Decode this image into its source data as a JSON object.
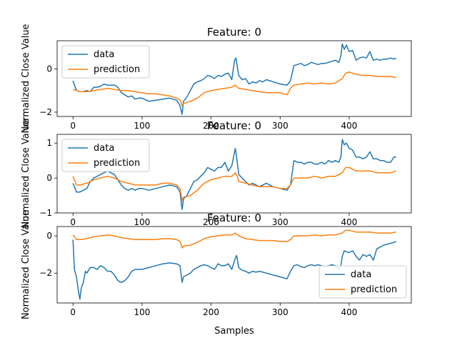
{
  "colors": {
    "data": "#1f77b4",
    "prediction": "#ff7f0e",
    "axis": "#000000"
  },
  "xlabel": "Samples",
  "chart_data": [
    {
      "type": "line",
      "title": "Feature: 0",
      "ylabel": "Normalized Close Value",
      "xlim": [
        -23,
        490
      ],
      "ylim": [
        -2.2,
        1.3
      ],
      "xticks": [
        0,
        100,
        200,
        300,
        400
      ],
      "yticks": [
        -2,
        0
      ],
      "legend": "upper-left",
      "series": [
        {
          "name": "data",
          "x": [
            0,
            5,
            10,
            15,
            20,
            25,
            30,
            35,
            40,
            45,
            50,
            55,
            60,
            65,
            70,
            75,
            80,
            85,
            90,
            95,
            100,
            110,
            120,
            130,
            140,
            150,
            155,
            158,
            160,
            165,
            170,
            175,
            180,
            185,
            190,
            195,
            200,
            205,
            210,
            215,
            220,
            225,
            230,
            234,
            236,
            240,
            245,
            250,
            255,
            260,
            265,
            270,
            275,
            280,
            285,
            290,
            300,
            310,
            315,
            320,
            325,
            330,
            335,
            340,
            345,
            350,
            355,
            360,
            365,
            370,
            375,
            380,
            385,
            388,
            390,
            393,
            396,
            400,
            405,
            410,
            415,
            420,
            425,
            430,
            435,
            440,
            445,
            450,
            455,
            460,
            465,
            468
          ],
          "y": [
            -0.55,
            -1.0,
            -1.05,
            -1.05,
            -1.0,
            -1.05,
            -0.85,
            -0.85,
            -0.8,
            -0.7,
            -0.75,
            -0.75,
            -0.75,
            -0.85,
            -1.1,
            -1.2,
            -1.3,
            -1.25,
            -1.4,
            -1.35,
            -1.35,
            -1.5,
            -1.45,
            -1.4,
            -1.35,
            -1.45,
            -1.7,
            -2.1,
            -1.5,
            -1.3,
            -1.0,
            -0.7,
            -0.6,
            -0.55,
            -0.45,
            -0.3,
            -0.35,
            -0.45,
            -0.3,
            -0.35,
            -0.25,
            -0.2,
            -0.5,
            0.4,
            0.5,
            -0.3,
            -0.5,
            -0.45,
            -0.7,
            -0.6,
            -0.65,
            -0.55,
            -0.6,
            -0.5,
            -0.55,
            -0.6,
            -0.7,
            -0.75,
            -0.55,
            0.15,
            0.2,
            0.25,
            0.15,
            0.2,
            0.3,
            0.25,
            0.2,
            0.25,
            0.25,
            0.3,
            0.35,
            0.4,
            0.3,
            0.6,
            1.15,
            0.9,
            1.1,
            0.8,
            0.85,
            0.4,
            0.5,
            0.55,
            0.5,
            0.8,
            0.4,
            0.45,
            0.4,
            0.45,
            0.45,
            0.5,
            0.45,
            0.5
          ]
        },
        {
          "name": "prediction",
          "x": [
            0,
            10,
            20,
            30,
            40,
            50,
            60,
            70,
            80,
            90,
            100,
            110,
            120,
            130,
            140,
            150,
            155,
            158,
            160,
            170,
            180,
            190,
            200,
            210,
            220,
            230,
            235,
            240,
            250,
            260,
            270,
            280,
            290,
            300,
            310,
            315,
            320,
            330,
            340,
            350,
            360,
            370,
            380,
            390,
            395,
            400,
            410,
            420,
            430,
            440,
            450,
            460,
            468
          ],
          "y": [
            -0.95,
            -1.05,
            -1.05,
            -1.0,
            -0.95,
            -0.9,
            -0.95,
            -1.0,
            -1.0,
            -1.05,
            -1.1,
            -1.15,
            -1.15,
            -1.2,
            -1.25,
            -1.35,
            -1.45,
            -1.7,
            -1.6,
            -1.5,
            -1.35,
            -1.1,
            -1.0,
            -0.95,
            -0.9,
            -0.85,
            -0.75,
            -0.9,
            -0.95,
            -1.0,
            -1.05,
            -1.1,
            -1.1,
            -1.1,
            -1.2,
            -0.9,
            -0.75,
            -0.7,
            -0.65,
            -0.7,
            -0.65,
            -0.7,
            -0.65,
            -0.45,
            -0.2,
            -0.15,
            -0.25,
            -0.3,
            -0.3,
            -0.35,
            -0.35,
            -0.35,
            -0.4
          ]
        }
      ]
    },
    {
      "type": "line",
      "title": "Feature: 0",
      "ylabel": "Normalized Close Value",
      "xlim": [
        -23,
        490
      ],
      "ylim": [
        -1.0,
        1.25
      ],
      "xticks": [
        0,
        100,
        200,
        300,
        400
      ],
      "yticks": [
        -1,
        0,
        1
      ],
      "legend": "upper-left",
      "series": [
        {
          "name": "data",
          "x": [
            0,
            5,
            10,
            15,
            20,
            25,
            30,
            35,
            40,
            45,
            50,
            55,
            60,
            65,
            70,
            75,
            80,
            85,
            90,
            95,
            100,
            110,
            120,
            130,
            140,
            150,
            155,
            158,
            160,
            165,
            170,
            175,
            180,
            185,
            190,
            195,
            200,
            205,
            210,
            215,
            220,
            225,
            230,
            235,
            237,
            240,
            245,
            250,
            255,
            260,
            265,
            270,
            275,
            280,
            285,
            290,
            300,
            310,
            315,
            320,
            325,
            330,
            335,
            340,
            345,
            350,
            355,
            360,
            365,
            370,
            375,
            380,
            385,
            388,
            390,
            393,
            396,
            400,
            405,
            410,
            415,
            420,
            425,
            430,
            435,
            440,
            445,
            450,
            455,
            460,
            465,
            468
          ],
          "y": [
            -0.15,
            -0.4,
            -0.4,
            -0.35,
            -0.3,
            -0.1,
            0.0,
            0.05,
            0.1,
            0.15,
            0.2,
            0.15,
            0.1,
            -0.05,
            -0.2,
            -0.3,
            -0.35,
            -0.3,
            -0.35,
            -0.3,
            -0.3,
            -0.35,
            -0.3,
            -0.25,
            -0.2,
            -0.25,
            -0.4,
            -0.9,
            -0.6,
            -0.5,
            -0.3,
            -0.1,
            -0.05,
            0.05,
            0.15,
            0.3,
            0.25,
            0.2,
            0.3,
            0.3,
            0.45,
            0.2,
            0.35,
            0.85,
            0.6,
            0.1,
            0.0,
            -0.1,
            -0.2,
            -0.15,
            -0.2,
            -0.25,
            -0.2,
            -0.15,
            -0.2,
            -0.25,
            -0.3,
            -0.35,
            -0.2,
            0.5,
            0.45,
            0.45,
            0.4,
            0.45,
            0.45,
            0.4,
            0.4,
            0.45,
            0.4,
            0.5,
            0.45,
            0.5,
            0.45,
            0.6,
            1.1,
            0.95,
            1.0,
            0.85,
            0.8,
            0.6,
            0.6,
            0.55,
            0.6,
            0.75,
            0.55,
            0.55,
            0.5,
            0.5,
            0.45,
            0.45,
            0.6,
            0.6
          ]
        },
        {
          "name": "prediction",
          "x": [
            0,
            5,
            10,
            20,
            30,
            40,
            50,
            60,
            70,
            80,
            90,
            100,
            110,
            120,
            130,
            140,
            150,
            155,
            158,
            160,
            170,
            180,
            190,
            200,
            210,
            220,
            230,
            235,
            238,
            240,
            250,
            260,
            270,
            280,
            290,
            300,
            310,
            315,
            320,
            330,
            340,
            350,
            360,
            370,
            380,
            390,
            395,
            400,
            410,
            420,
            430,
            440,
            450,
            460,
            468
          ],
          "y": [
            0.05,
            -0.2,
            -0.2,
            -0.15,
            -0.05,
            0.0,
            0.05,
            0.0,
            -0.1,
            -0.15,
            -0.2,
            -0.2,
            -0.2,
            -0.2,
            -0.15,
            -0.15,
            -0.2,
            -0.3,
            -0.65,
            -0.55,
            -0.5,
            -0.35,
            -0.15,
            -0.05,
            0.0,
            0.05,
            0.05,
            0.15,
            0.05,
            -0.1,
            -0.15,
            -0.2,
            -0.25,
            -0.25,
            -0.25,
            -0.3,
            -0.3,
            -0.2,
            0.0,
            0.0,
            0.0,
            0.05,
            0.0,
            0.05,
            0.05,
            0.15,
            0.3,
            0.3,
            0.2,
            0.2,
            0.2,
            0.15,
            0.15,
            0.15,
            0.2
          ]
        }
      ]
    },
    {
      "type": "line",
      "title": "Feature: 0",
      "ylabel": "Normalized Close Value",
      "xlabel": "Samples",
      "xlim": [
        -23,
        490
      ],
      "ylim": [
        -3.6,
        0.5
      ],
      "xticks": [
        0,
        100,
        200,
        300,
        400
      ],
      "yticks": [
        -2,
        0
      ],
      "legend": "lower-right",
      "series": [
        {
          "name": "data",
          "x": [
            0,
            2,
            5,
            8,
            10,
            12,
            15,
            18,
            20,
            25,
            30,
            35,
            40,
            45,
            50,
            55,
            60,
            65,
            70,
            75,
            80,
            85,
            90,
            95,
            100,
            110,
            120,
            130,
            140,
            150,
            155,
            158,
            160,
            165,
            170,
            175,
            180,
            185,
            190,
            195,
            200,
            205,
            210,
            215,
            220,
            225,
            230,
            235,
            237,
            240,
            245,
            250,
            255,
            260,
            265,
            270,
            275,
            280,
            285,
            290,
            300,
            310,
            315,
            320,
            325,
            330,
            335,
            340,
            345,
            350,
            355,
            360,
            365,
            370,
            375,
            380,
            385,
            388,
            390,
            393,
            396,
            400,
            405,
            410,
            415,
            420,
            425,
            430,
            435,
            440,
            445,
            450,
            455,
            460,
            465,
            468
          ],
          "y": [
            -0.2,
            -1.8,
            -2.2,
            -3.0,
            -3.4,
            -2.8,
            -2.5,
            -1.9,
            -2.0,
            -1.7,
            -1.7,
            -1.8,
            -1.6,
            -1.7,
            -1.9,
            -1.9,
            -2.1,
            -2.4,
            -2.5,
            -2.4,
            -2.2,
            -1.9,
            -1.8,
            -1.8,
            -1.8,
            -1.7,
            -1.6,
            -1.5,
            -1.45,
            -1.5,
            -1.6,
            -2.5,
            -2.2,
            -2.1,
            -2.0,
            -1.8,
            -1.7,
            -1.6,
            -1.55,
            -1.6,
            -1.7,
            -1.8,
            -1.5,
            -1.6,
            -1.6,
            -1.5,
            -1.8,
            -1.2,
            -1.05,
            -1.7,
            -1.85,
            -1.9,
            -2.0,
            -1.9,
            -1.95,
            -1.9,
            -1.95,
            -2.0,
            -2.05,
            -2.1,
            -2.2,
            -2.3,
            -1.9,
            -1.6,
            -1.55,
            -1.65,
            -1.7,
            -1.6,
            -1.55,
            -1.6,
            -1.55,
            -1.6,
            -1.65,
            -1.6,
            -1.55,
            -1.6,
            -1.8,
            -1.6,
            -1.1,
            -0.8,
            -0.85,
            -0.9,
            -0.8,
            -1.1,
            -1.3,
            -1.0,
            -1.1,
            -1.0,
            -1.3,
            -0.7,
            -0.6,
            -0.5,
            -0.45,
            -0.4,
            -0.35,
            -0.3
          ]
        },
        {
          "name": "prediction",
          "x": [
            0,
            5,
            10,
            20,
            30,
            40,
            50,
            60,
            70,
            80,
            90,
            100,
            110,
            120,
            130,
            140,
            150,
            155,
            158,
            160,
            170,
            180,
            190,
            200,
            210,
            220,
            230,
            235,
            240,
            250,
            260,
            270,
            280,
            290,
            300,
            310,
            315,
            320,
            330,
            340,
            350,
            360,
            370,
            380,
            390,
            395,
            400,
            410,
            420,
            430,
            440,
            450,
            460,
            468
          ],
          "y": [
            0.05,
            -0.2,
            -0.2,
            -0.15,
            -0.05,
            0.0,
            0.05,
            0.0,
            -0.1,
            -0.15,
            -0.2,
            -0.2,
            -0.2,
            -0.2,
            -0.15,
            -0.15,
            -0.2,
            -0.3,
            -0.65,
            -0.55,
            -0.5,
            -0.35,
            -0.15,
            -0.05,
            0.0,
            0.05,
            0.05,
            0.15,
            0.0,
            -0.15,
            -0.2,
            -0.25,
            -0.25,
            -0.25,
            -0.3,
            -0.3,
            -0.2,
            0.0,
            0.0,
            0.0,
            0.05,
            0.0,
            0.05,
            0.05,
            0.15,
            0.3,
            0.3,
            0.2,
            0.2,
            0.2,
            0.15,
            0.15,
            0.15,
            0.2
          ]
        }
      ]
    }
  ]
}
